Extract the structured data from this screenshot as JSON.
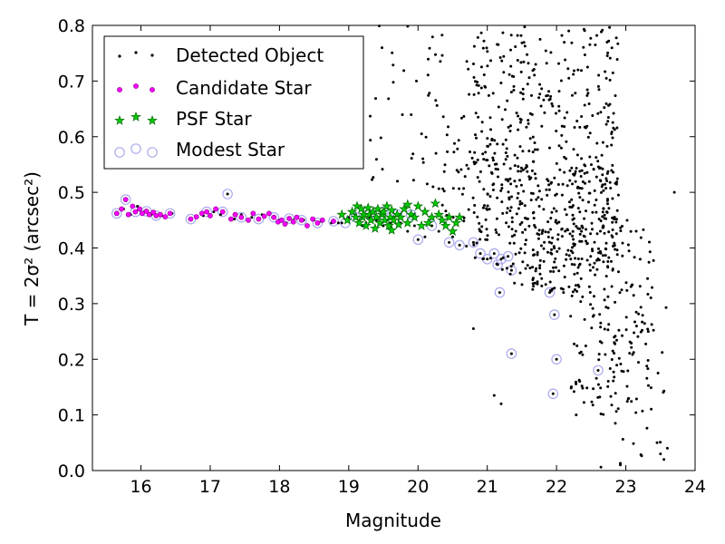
{
  "chart_data": {
    "type": "scatter",
    "xlabel": "Magnitude",
    "ylabel": "T = 2σ² (arcsec²)",
    "xlim": [
      15.3,
      24.0
    ],
    "ylim": [
      0.0,
      0.8
    ],
    "xticks": [
      "16",
      "17",
      "18",
      "19",
      "20",
      "21",
      "22",
      "23",
      "24"
    ],
    "yticks": [
      "0.0",
      "0.1",
      "0.2",
      "0.3",
      "0.4",
      "0.5",
      "0.6",
      "0.7",
      "0.8"
    ],
    "grid": false,
    "legend_position": "top-left",
    "series": [
      {
        "name": "Detected Object",
        "marker": "dot",
        "color": "#000000",
        "points": [
          [
            15.75,
            0.47
          ],
          [
            15.85,
            0.46
          ],
          [
            15.95,
            0.475
          ],
          [
            16.05,
            0.465
          ],
          [
            16.15,
            0.46
          ],
          [
            16.3,
            0.458
          ],
          [
            16.45,
            0.462
          ],
          [
            16.7,
            0.452
          ],
          [
            16.9,
            0.458
          ],
          [
            17.05,
            0.465
          ],
          [
            17.15,
            0.46
          ],
          [
            17.25,
            0.497
          ],
          [
            17.35,
            0.452
          ],
          [
            17.45,
            0.46
          ],
          [
            17.6,
            0.455
          ],
          [
            17.75,
            0.46
          ],
          [
            17.9,
            0.455
          ],
          [
            18.0,
            0.45
          ],
          [
            18.1,
            0.445
          ],
          [
            18.2,
            0.45
          ],
          [
            18.35,
            0.45
          ],
          [
            18.5,
            0.45
          ],
          [
            18.6,
            0.448
          ],
          [
            18.75,
            0.445
          ],
          [
            18.85,
            0.445
          ],
          [
            19.0,
            0.455
          ],
          [
            19.1,
            0.46
          ],
          [
            19.2,
            0.44
          ],
          [
            19.3,
            0.455
          ],
          [
            19.4,
            0.45
          ],
          [
            19.5,
            0.44
          ],
          [
            19.6,
            0.445
          ],
          [
            19.7,
            0.46
          ],
          [
            19.85,
            0.43
          ],
          [
            19.95,
            0.44
          ],
          [
            20.0,
            0.415
          ],
          [
            20.1,
            0.42
          ],
          [
            20.2,
            0.44
          ],
          [
            20.3,
            0.43
          ],
          [
            20.45,
            0.41
          ],
          [
            20.5,
            0.42
          ],
          [
            20.6,
            0.405
          ],
          [
            20.8,
            0.41
          ],
          [
            20.9,
            0.39
          ],
          [
            21.0,
            0.38
          ],
          [
            21.1,
            0.39
          ],
          [
            21.15,
            0.37
          ],
          [
            21.2,
            0.38
          ],
          [
            21.3,
            0.385
          ],
          [
            21.35,
            0.36
          ],
          [
            21.18,
            0.32
          ],
          [
            21.35,
            0.21
          ],
          [
            21.9,
            0.32
          ],
          [
            21.97,
            0.28
          ],
          [
            22.0,
            0.2
          ],
          [
            21.95,
            0.138
          ],
          [
            22.6,
            0.18
          ],
          [
            20.8,
            0.255
          ],
          [
            21.1,
            0.135
          ],
          [
            21.2,
            0.12
          ],
          [
            23.5,
            0.03
          ],
          [
            23.6,
            0.04
          ],
          [
            23.7,
            0.5
          ],
          [
            23.45,
            0.05
          ],
          [
            23.55,
            0.02
          ],
          [
            18.9,
            0.445
          ],
          [
            19.25,
            0.445
          ],
          [
            19.55,
            0.45
          ],
          [
            19.75,
            0.445
          ]
        ],
        "bulk": [
          {
            "x": [
              20.8,
              22.9
            ],
            "y": [
              0.36,
              0.8
            ],
            "n": 430
          },
          {
            "x": [
              21.3,
              22.9
            ],
            "y": [
              0.32,
              0.55
            ],
            "n": 220
          },
          {
            "x": [
              22.2,
              23.4
            ],
            "y": [
              0.1,
              0.45
            ],
            "n": 160
          },
          {
            "x": [
              19.3,
              20.9
            ],
            "y": [
              0.5,
              0.8
            ],
            "n": 60
          },
          {
            "x": [
              20.3,
              21.3
            ],
            "y": [
              0.4,
              0.6
            ],
            "n": 60
          },
          {
            "x": [
              22.6,
              23.6
            ],
            "y": [
              0.0,
              0.3
            ],
            "n": 40
          }
        ]
      },
      {
        "name": "Candidate Star",
        "marker": "small-circle",
        "color": "#ff00ff",
        "points": [
          [
            15.65,
            0.462
          ],
          [
            15.72,
            0.47
          ],
          [
            15.78,
            0.487
          ],
          [
            15.82,
            0.46
          ],
          [
            15.88,
            0.475
          ],
          [
            15.92,
            0.465
          ],
          [
            15.98,
            0.47
          ],
          [
            16.02,
            0.462
          ],
          [
            16.08,
            0.466
          ],
          [
            16.12,
            0.46
          ],
          [
            16.18,
            0.464
          ],
          [
            16.22,
            0.458
          ],
          [
            16.28,
            0.46
          ],
          [
            16.35,
            0.456
          ],
          [
            16.42,
            0.462
          ],
          [
            16.72,
            0.452
          ],
          [
            16.8,
            0.456
          ],
          [
            16.88,
            0.462
          ],
          [
            16.95,
            0.465
          ],
          [
            17.0,
            0.458
          ],
          [
            17.08,
            0.47
          ],
          [
            17.18,
            0.465
          ],
          [
            17.3,
            0.452
          ],
          [
            17.36,
            0.46
          ],
          [
            17.45,
            0.455
          ],
          [
            17.55,
            0.45
          ],
          [
            17.62,
            0.462
          ],
          [
            17.7,
            0.452
          ],
          [
            17.78,
            0.457
          ],
          [
            17.85,
            0.462
          ],
          [
            17.92,
            0.455
          ],
          [
            17.98,
            0.447
          ],
          [
            18.03,
            0.45
          ],
          [
            18.08,
            0.443
          ],
          [
            18.14,
            0.453
          ],
          [
            18.2,
            0.447
          ],
          [
            18.25,
            0.455
          ],
          [
            18.32,
            0.45
          ],
          [
            18.4,
            0.44
          ],
          [
            18.48,
            0.452
          ],
          [
            18.55,
            0.445
          ],
          [
            18.62,
            0.45
          ],
          [
            18.78,
            0.448
          ]
        ]
      },
      {
        "name": "PSF Star",
        "marker": "star",
        "color": "#00cc00",
        "points": [
          [
            18.9,
            0.46
          ],
          [
            18.98,
            0.45
          ],
          [
            19.05,
            0.465
          ],
          [
            19.1,
            0.455
          ],
          [
            19.12,
            0.475
          ],
          [
            19.15,
            0.445
          ],
          [
            19.18,
            0.47
          ],
          [
            19.2,
            0.455
          ],
          [
            19.22,
            0.46
          ],
          [
            19.25,
            0.44
          ],
          [
            19.28,
            0.472
          ],
          [
            19.3,
            0.46
          ],
          [
            19.32,
            0.45
          ],
          [
            19.35,
            0.465
          ],
          [
            19.38,
            0.435
          ],
          [
            19.4,
            0.455
          ],
          [
            19.42,
            0.47
          ],
          [
            19.45,
            0.445
          ],
          [
            19.48,
            0.46
          ],
          [
            19.5,
            0.465
          ],
          [
            19.52,
            0.45
          ],
          [
            19.55,
            0.475
          ],
          [
            19.58,
            0.44
          ],
          [
            19.6,
            0.455
          ],
          [
            19.62,
            0.468
          ],
          [
            19.65,
            0.45
          ],
          [
            19.7,
            0.46
          ],
          [
            19.72,
            0.442
          ],
          [
            19.75,
            0.455
          ],
          [
            19.8,
            0.47
          ],
          [
            19.85,
            0.445
          ],
          [
            19.9,
            0.46
          ],
          [
            19.95,
            0.455
          ],
          [
            20.0,
            0.475
          ],
          [
            20.05,
            0.44
          ],
          [
            20.1,
            0.465
          ],
          [
            20.15,
            0.445
          ],
          [
            20.2,
            0.455
          ],
          [
            20.25,
            0.48
          ],
          [
            20.3,
            0.46
          ],
          [
            20.35,
            0.45
          ],
          [
            20.4,
            0.44
          ],
          [
            20.45,
            0.455
          ],
          [
            20.5,
            0.43
          ],
          [
            20.55,
            0.445
          ],
          [
            20.6,
            0.455
          ],
          [
            19.85,
            0.478
          ],
          [
            19.62,
            0.432
          ]
        ]
      },
      {
        "name": "Modest Star",
        "marker": "open-circle",
        "color": "#aaaaee",
        "points": [
          [
            15.65,
            0.462
          ],
          [
            15.78,
            0.487
          ],
          [
            15.92,
            0.465
          ],
          [
            16.08,
            0.466
          ],
          [
            16.22,
            0.458
          ],
          [
            16.42,
            0.462
          ],
          [
            16.72,
            0.452
          ],
          [
            16.95,
            0.465
          ],
          [
            17.18,
            0.465
          ],
          [
            17.25,
            0.497
          ],
          [
            17.45,
            0.455
          ],
          [
            17.7,
            0.452
          ],
          [
            17.92,
            0.455
          ],
          [
            18.14,
            0.453
          ],
          [
            18.32,
            0.45
          ],
          [
            18.55,
            0.445
          ],
          [
            18.78,
            0.448
          ],
          [
            18.95,
            0.445
          ],
          [
            19.1,
            0.455
          ],
          [
            19.3,
            0.46
          ],
          [
            19.5,
            0.465
          ],
          [
            19.7,
            0.46
          ],
          [
            19.9,
            0.46
          ],
          [
            20.0,
            0.415
          ],
          [
            20.2,
            0.44
          ],
          [
            20.45,
            0.41
          ],
          [
            20.6,
            0.405
          ],
          [
            20.8,
            0.41
          ],
          [
            20.9,
            0.39
          ],
          [
            21.0,
            0.38
          ],
          [
            21.1,
            0.39
          ],
          [
            21.15,
            0.37
          ],
          [
            21.2,
            0.38
          ],
          [
            21.3,
            0.385
          ],
          [
            21.35,
            0.36
          ],
          [
            21.18,
            0.32
          ],
          [
            21.35,
            0.21
          ],
          [
            21.9,
            0.32
          ],
          [
            21.97,
            0.28
          ],
          [
            22.0,
            0.2
          ],
          [
            21.95,
            0.138
          ],
          [
            22.6,
            0.18
          ]
        ]
      }
    ]
  }
}
